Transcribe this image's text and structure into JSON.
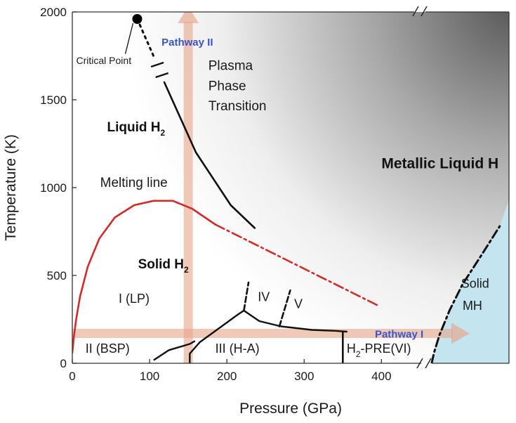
{
  "chart_data": {
    "type": "phase-diagram",
    "title": "",
    "xlabel": "Pressure (GPa)",
    "ylabel": "Temperature (K)",
    "xlim": [
      0,
      565
    ],
    "ylim": [
      0,
      2000
    ],
    "xticks": [
      0,
      100,
      200,
      300,
      400
    ],
    "yticks": [
      0,
      500,
      1000,
      1500,
      2000
    ],
    "x_axis_break": true,
    "grid": false,
    "colors": {
      "melting_line": "#d42a2a",
      "boundaries": "#111111",
      "pathway_arrows": "#e8a58a",
      "pathway_label": "#3a55c8",
      "solid_mh_region": "#c4e4f0",
      "metallic_gradient_dark": "#555555",
      "metallic_gradient_light": "#ffffff"
    },
    "regions": [
      {
        "id": "liquid-h2",
        "label": "Liquid H",
        "subscript": "2",
        "bold": true,
        "x": 45,
        "y": 1320
      },
      {
        "id": "solid-h2",
        "label": "Solid H",
        "subscript": "2",
        "bold": true,
        "x": 85,
        "y": 540
      },
      {
        "id": "metallic-liquid-h",
        "label": "Metallic Liquid H",
        "bold": true,
        "x": 400,
        "y": 1110
      },
      {
        "id": "plasma-transition-1",
        "label": "Plasma",
        "x": 176,
        "y": 1670
      },
      {
        "id": "plasma-transition-2",
        "label": "Phase",
        "x": 176,
        "y": 1555
      },
      {
        "id": "plasma-transition-3",
        "label": "Transition",
        "x": 176,
        "y": 1440
      },
      {
        "id": "melting-line-label",
        "label": "Melting line",
        "x": 36,
        "y": 1005
      },
      {
        "id": "phase-i",
        "label": "I (LP)",
        "x": 60,
        "y": 345
      },
      {
        "id": "phase-ii",
        "label": "II (BSP)",
        "x": 17,
        "y": 60
      },
      {
        "id": "phase-iii",
        "label": "III (H-A)",
        "x": 185,
        "y": 60
      },
      {
        "id": "phase-iv",
        "label": "IV",
        "x": 240,
        "y": 355
      },
      {
        "id": "phase-v",
        "label": "V",
        "x": 287,
        "y": 315
      },
      {
        "id": "phase-vi",
        "label": "H",
        "subscript": "2",
        "suffix": "-PRE(VI)",
        "x": 355,
        "y": 60
      },
      {
        "id": "solid-mh-1",
        "label": "Solid",
        "x": 503,
        "y": 430
      },
      {
        "id": "solid-mh-2",
        "label": "MH",
        "x": 505,
        "y": 305
      }
    ],
    "critical_point": {
      "label": "Critical Point",
      "x": 84,
      "y": 1960,
      "label_x": 5,
      "label_y": 1705
    },
    "pathways": [
      {
        "name": "Pathway I",
        "direction": "increasing pressure",
        "at_T": 170,
        "from_P": 0,
        "to_P": 505
      },
      {
        "name": "Pathway II",
        "direction": "increasing temperature",
        "at_P": 150,
        "from_T": 0,
        "to_T": 2000
      }
    ],
    "curves": {
      "melting_line_solid": [
        [
          0,
          60
        ],
        [
          2,
          150
        ],
        [
          5,
          250
        ],
        [
          10,
          380
        ],
        [
          20,
          550
        ],
        [
          35,
          710
        ],
        [
          55,
          830
        ],
        [
          80,
          900
        ],
        [
          105,
          925
        ],
        [
          130,
          925
        ],
        [
          155,
          880
        ],
        [
          175,
          820
        ],
        [
          185,
          790
        ]
      ],
      "melting_line_extrapolated": [
        [
          185,
          790
        ],
        [
          395,
          330
        ]
      ],
      "plasma_transition_dotted": [
        [
          84,
          1960
        ],
        [
          105,
          1750
        ]
      ],
      "plasma_transition_solid": [
        [
          119,
          1600
        ],
        [
          160,
          1200
        ],
        [
          205,
          900
        ],
        [
          236,
          770
        ]
      ],
      "i_ii_boundary": [
        [
          106,
          20
        ],
        [
          125,
          75
        ],
        [
          152,
          110
        ],
        [
          158,
          125
        ]
      ],
      "i_iii_boundary": [
        [
          152,
          0
        ],
        [
          152,
          55
        ],
        [
          165,
          120
        ],
        [
          190,
          200
        ],
        [
          215,
          280
        ],
        [
          222,
          300
        ]
      ],
      "iii_iv_boundary": [
        [
          222,
          300
        ],
        [
          242,
          240
        ],
        [
          270,
          210
        ],
        [
          310,
          190
        ],
        [
          340,
          185
        ],
        [
          355,
          180
        ]
      ],
      "iv_line_dashed": [
        [
          222,
          300
        ],
        [
          228,
          460
        ]
      ],
      "v_line_dashed": [
        [
          268,
          210
        ],
        [
          282,
          415
        ]
      ],
      "iii_vi_boundary": [
        [
          350,
          0
        ],
        [
          350,
          175
        ]
      ],
      "metallization_dashdot": [
        [
          465,
          0
        ],
        [
          468,
          60
        ],
        [
          475,
          160
        ],
        [
          488,
          300
        ],
        [
          505,
          450
        ],
        [
          530,
          620
        ],
        [
          553,
          780
        ]
      ]
    }
  }
}
